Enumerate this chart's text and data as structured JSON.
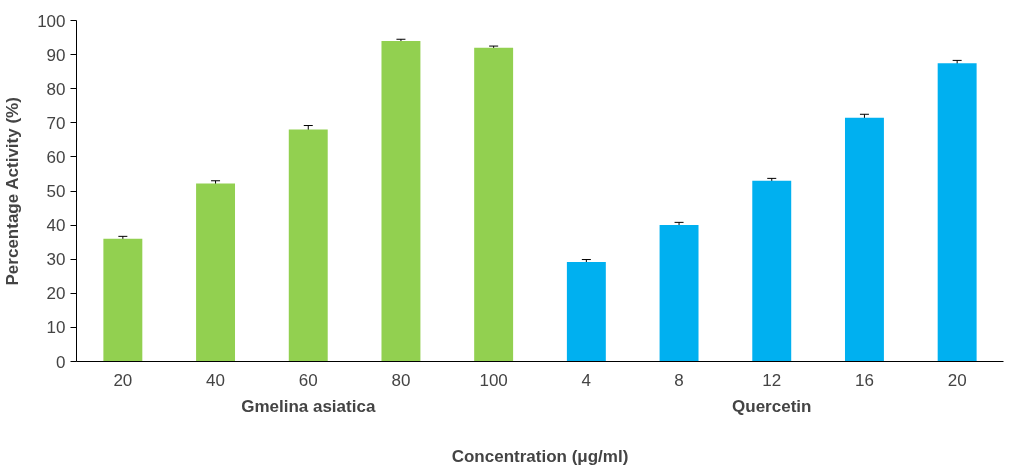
{
  "chart_data": {
    "type": "bar",
    "xlabel": "Concentration (μg/ml)",
    "ylabel": "Percentage Activity (%)",
    "categories": [
      "20",
      "40",
      "60",
      "80",
      "100",
      "4",
      "8",
      "12",
      "16",
      "20"
    ],
    "series": [
      {
        "name": "Gmelina asiatica",
        "color": "#92d050",
        "values": [
          36,
          52.2,
          68,
          94,
          92,
          null,
          null,
          null,
          null,
          null
        ],
        "errors": [
          0.7,
          0.8,
          1.2,
          0.5,
          0.5,
          null,
          null,
          null,
          null,
          null
        ]
      },
      {
        "name": "Quercetin",
        "color": "#00b0f0",
        "values": [
          null,
          null,
          null,
          null,
          null,
          29.2,
          40,
          53,
          71.5,
          87.5
        ],
        "errors": [
          null,
          null,
          null,
          null,
          null,
          0.7,
          0.8,
          0.7,
          1,
          0.8
        ]
      }
    ],
    "ylim": [
      0,
      100
    ],
    "yticks": [
      0,
      10,
      20,
      30,
      40,
      50,
      60,
      70,
      80,
      90,
      100
    ],
    "grid": false
  }
}
